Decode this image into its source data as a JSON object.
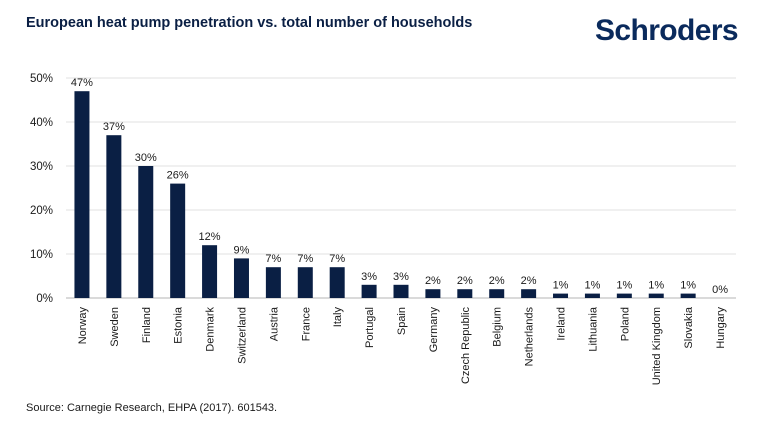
{
  "header": {
    "title": "European heat pump penetration vs. total number of households",
    "logo_text": "Schroders"
  },
  "footer": {
    "source": "Source: Carnegie Research, EHPA (2017). 601543."
  },
  "colors": {
    "bar": "#0a1f44",
    "grid": "#e2e2e2",
    "text": "#1a1a1a"
  },
  "chart_data": {
    "type": "bar",
    "title": "European heat pump penetration vs. total number of households",
    "xlabel": "",
    "ylabel": "",
    "ylim": [
      0,
      50
    ],
    "yticks": [
      "0%",
      "10%",
      "20%",
      "30%",
      "40%",
      "50%"
    ],
    "grid": true,
    "categories": [
      "Norway",
      "Sweden",
      "Finland",
      "Estonia",
      "Denmark",
      "Switzerland",
      "Austria",
      "France",
      "Italy",
      "Portugal",
      "Spain",
      "Germany",
      "Czech Republic",
      "Belgium",
      "Netherlands",
      "Ireland",
      "Lithuania",
      "Poland",
      "United Kingdom",
      "Slovakia",
      "Hungary"
    ],
    "values": [
      47,
      37,
      30,
      26,
      12,
      9,
      7,
      7,
      7,
      3,
      3,
      2,
      2,
      2,
      2,
      1,
      1,
      1,
      1,
      1,
      0
    ],
    "labels": [
      "47%",
      "37%",
      "30%",
      "26%",
      "12%",
      "9%",
      "7%",
      "7%",
      "7%",
      "3%",
      "3%",
      "2%",
      "2%",
      "2%",
      "2%",
      "1%",
      "1%",
      "1%",
      "1%",
      "1%",
      "0%"
    ]
  }
}
